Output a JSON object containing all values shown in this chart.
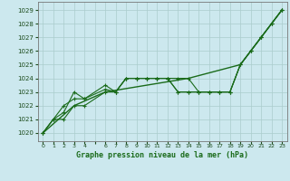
{
  "bg_color": "#cce8ee",
  "grid_color": "#aacccc",
  "line_color": "#1a6b1a",
  "xlabel": "Graphe pression niveau de la mer (hPa)",
  "ylim": [
    1019.4,
    1029.6
  ],
  "xlim": [
    -0.5,
    23.5
  ],
  "yticks": [
    1020,
    1021,
    1022,
    1023,
    1024,
    1025,
    1026,
    1027,
    1028,
    1029
  ],
  "xtick_positions": [
    0,
    1,
    2,
    3,
    4,
    5,
    6,
    7,
    8,
    9,
    10,
    11,
    12,
    13,
    14,
    15,
    16,
    17,
    18,
    19,
    20,
    21,
    22,
    23
  ],
  "xtick_labels": [
    "0",
    "1",
    "2",
    "3",
    "4",
    "",
    "6",
    "7",
    "8",
    "9",
    "10",
    "11",
    "12",
    "13",
    "14",
    "15",
    "16",
    "17",
    "18",
    "19",
    "20",
    "21",
    "22",
    "23"
  ],
  "line1_x": [
    0,
    1,
    2,
    3,
    4,
    6,
    7,
    8,
    9,
    10,
    11,
    12,
    13,
    14,
    15,
    16,
    17,
    18,
    19,
    20,
    21,
    22,
    23
  ],
  "line1_y": [
    1020.0,
    1021.0,
    1021.0,
    1022.0,
    1022.0,
    1023.0,
    1023.0,
    1024.0,
    1024.0,
    1024.0,
    1024.0,
    1024.0,
    1023.0,
    1023.0,
    1023.0,
    1023.0,
    1023.0,
    1023.0,
    1025.0,
    1026.0,
    1027.0,
    1028.0,
    1029.0
  ],
  "line2_x": [
    0,
    1,
    2,
    3,
    4,
    6,
    7,
    8,
    9,
    10,
    11,
    12,
    13,
    14,
    15,
    16,
    17,
    18,
    19,
    20,
    21,
    22,
    23
  ],
  "line2_y": [
    1020.0,
    1021.0,
    1022.0,
    1022.5,
    1022.5,
    1023.2,
    1023.0,
    1024.0,
    1024.0,
    1024.0,
    1024.0,
    1024.0,
    1024.0,
    1024.0,
    1023.0,
    1023.0,
    1023.0,
    1023.0,
    1025.0,
    1026.0,
    1027.0,
    1028.0,
    1029.0
  ],
  "line3_x": [
    0,
    1,
    2,
    3,
    4,
    6,
    7,
    8,
    9,
    10,
    11,
    12,
    13,
    14,
    15,
    16,
    17,
    18,
    19,
    20,
    21,
    22,
    23
  ],
  "line3_y": [
    1020.0,
    1021.0,
    1021.5,
    1023.0,
    1022.5,
    1023.5,
    1023.0,
    1024.0,
    1024.0,
    1024.0,
    1024.0,
    1024.0,
    1023.0,
    1023.0,
    1023.0,
    1023.0,
    1023.0,
    1023.0,
    1025.0,
    1026.0,
    1027.0,
    1028.0,
    1029.0
  ],
  "line4_x": [
    0,
    3,
    6,
    14,
    19,
    21,
    22,
    23
  ],
  "line4_y": [
    1020.0,
    1022.0,
    1023.0,
    1024.0,
    1025.0,
    1027.0,
    1028.0,
    1029.0
  ]
}
